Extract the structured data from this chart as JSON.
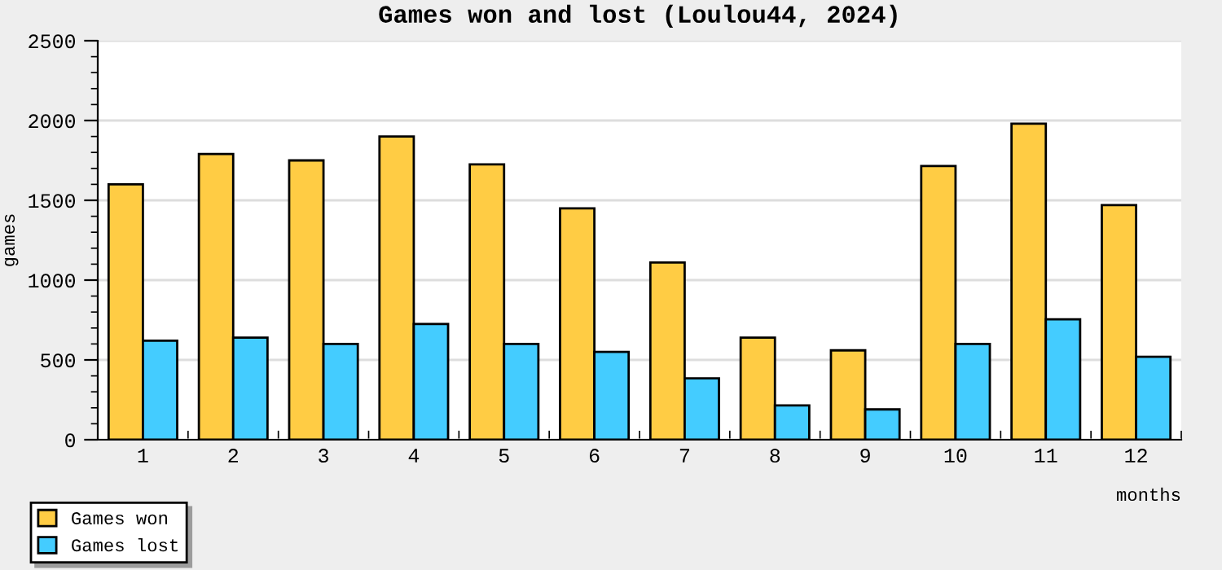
{
  "chart_data": {
    "type": "bar",
    "title": "Games won and lost (Loulou44, 2024)",
    "xlabel": "months",
    "ylabel": "games",
    "categories": [
      "1",
      "2",
      "3",
      "4",
      "5",
      "6",
      "7",
      "8",
      "9",
      "10",
      "11",
      "12"
    ],
    "series": [
      {
        "name": "Games won",
        "color": "#ffcc44",
        "values": [
          1600,
          1790,
          1750,
          1900,
          1725,
          1450,
          1110,
          640,
          560,
          1715,
          1980,
          1470
        ]
      },
      {
        "name": "Games lost",
        "color": "#44ccff",
        "values": [
          620,
          640,
          600,
          725,
          600,
          550,
          385,
          215,
          190,
          600,
          755,
          520
        ]
      }
    ],
    "ylim": [
      0,
      2500
    ],
    "yticks": [
      0,
      500,
      1000,
      1500,
      2000,
      2500
    ],
    "grid": "y",
    "legend": "bottom left"
  }
}
